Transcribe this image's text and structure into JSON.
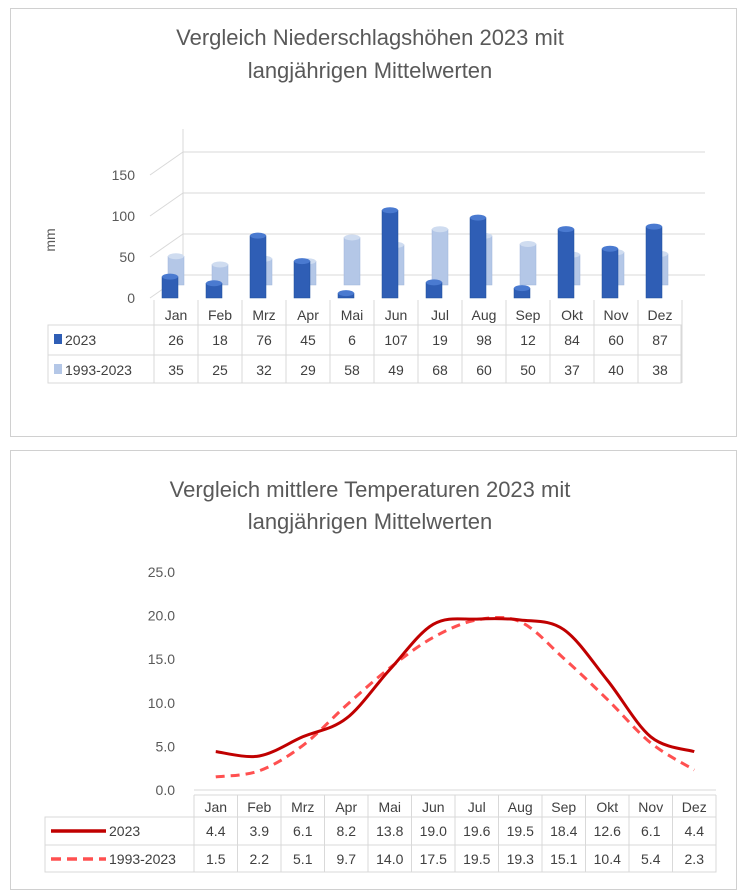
{
  "chart_data": [
    {
      "type": "bar",
      "title": "Vergleich Niederschlagshöhen 2023 mit langjährigen Mittelwerten",
      "title_lines": [
        "Vergleich Niederschlagshöhen 2023 mit",
        "langjährigen Mittelwerten"
      ],
      "xlabel": "",
      "ylabel": "mm",
      "ylim": [
        0,
        150
      ],
      "yticks": [
        "0",
        "50",
        "100",
        "150"
      ],
      "categories": [
        "Jan",
        "Feb",
        "Mrz",
        "Apr",
        "Mai",
        "Jun",
        "Jul",
        "Aug",
        "Sep",
        "Okt",
        "Nov",
        "Dez"
      ],
      "series": [
        {
          "name": "2023",
          "color": "#2F5EB5",
          "values": [
            26,
            18,
            76,
            45,
            6,
            107,
            19,
            98,
            12,
            84,
            60,
            87
          ]
        },
        {
          "name": "1993-2023",
          "color": "#B4C7E7",
          "values": [
            35,
            25,
            32,
            29,
            58,
            49,
            68,
            60,
            50,
            37,
            40,
            38
          ]
        }
      ],
      "legend": "data-table"
    },
    {
      "type": "line",
      "title": "Vergleich mittlere Temperaturen 2023 mit langjährigen Mittelwerten",
      "title_lines": [
        "Vergleich mittlere Temperaturen 2023 mit",
        "langjährigen Mittelwerten"
      ],
      "xlabel": "",
      "ylabel": "",
      "ylim": [
        0,
        25
      ],
      "yticks": [
        "0.0",
        "5.0",
        "10.0",
        "15.0",
        "20.0",
        "25.0"
      ],
      "categories": [
        "Jan",
        "Feb",
        "Mrz",
        "Apr",
        "Mai",
        "Jun",
        "Jul",
        "Aug",
        "Sep",
        "Okt",
        "Nov",
        "Dez"
      ],
      "series": [
        {
          "name": "2023",
          "color": "#C00000",
          "dash": false,
          "values": [
            "4.4",
            "3.9",
            "6.1",
            "8.2",
            "13.8",
            "19.0",
            "19.6",
            "19.5",
            "18.4",
            "12.6",
            "6.1",
            "4.4"
          ]
        },
        {
          "name": "1993-2023",
          "color": "#FF5050",
          "dash": true,
          "values": [
            "1.5",
            "2.2",
            "5.1",
            "9.7",
            "14.0",
            "17.5",
            "19.5",
            "19.3",
            "15.1",
            "10.4",
            "5.4",
            "2.3"
          ]
        }
      ],
      "legend": "data-table"
    }
  ]
}
